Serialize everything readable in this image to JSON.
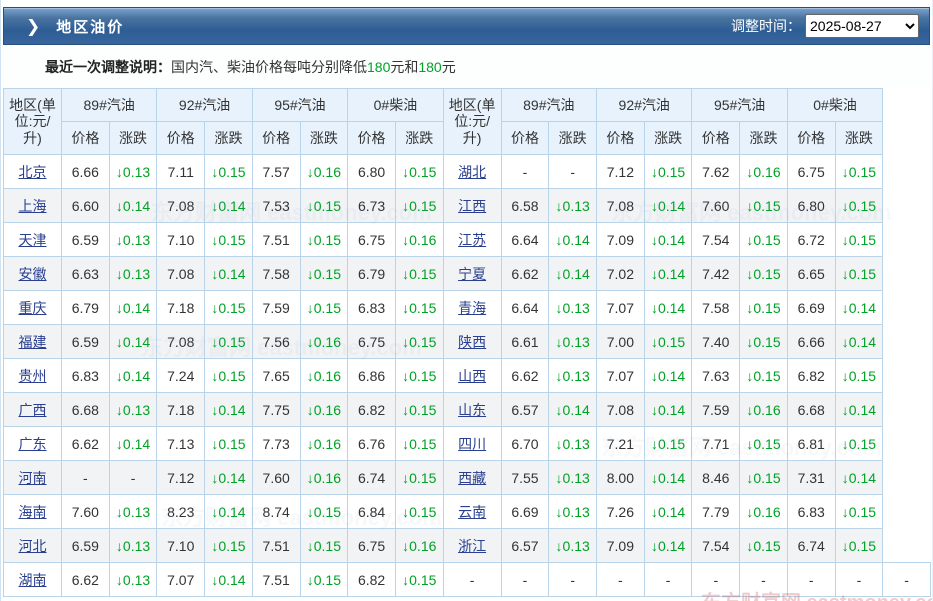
{
  "header": {
    "arrow_icon": "❯",
    "title": "地区油价",
    "adjust_time_label": "调整时间：",
    "adjust_date": "2025-08-27"
  },
  "notice": {
    "label": "最近一次调整说明：",
    "text1": "国内汽、柴油价格每吨分别降低",
    "amount1": "180",
    "text2": "元和",
    "amount2": "180",
    "text3": "元"
  },
  "table": {
    "region_header": "地区(单位:元/升)",
    "fuel_groups": [
      "89#汽油",
      "92#汽油",
      "95#汽油",
      "0#柴油"
    ],
    "price_label": "价格",
    "change_label": "涨跌",
    "rows": [
      [
        "北京",
        "6.66",
        "↓0.13",
        "7.11",
        "↓0.15",
        "7.57",
        "↓0.16",
        "6.80",
        "↓0.15",
        "湖北",
        "-",
        "-",
        "7.12",
        "↓0.15",
        "7.62",
        "↓0.16",
        "6.75",
        "↓0.15"
      ],
      [
        "上海",
        "6.60",
        "↓0.14",
        "7.08",
        "↓0.14",
        "7.53",
        "↓0.15",
        "6.73",
        "↓0.15",
        "江西",
        "6.58",
        "↓0.13",
        "7.08",
        "↓0.14",
        "7.60",
        "↓0.15",
        "6.80",
        "↓0.15"
      ],
      [
        "天津",
        "6.59",
        "↓0.13",
        "7.10",
        "↓0.15",
        "7.51",
        "↓0.15",
        "6.75",
        "↓0.16",
        "江苏",
        "6.64",
        "↓0.14",
        "7.09",
        "↓0.14",
        "7.54",
        "↓0.15",
        "6.72",
        "↓0.15"
      ],
      [
        "安徽",
        "6.63",
        "↓0.13",
        "7.08",
        "↓0.14",
        "7.58",
        "↓0.15",
        "6.79",
        "↓0.15",
        "宁夏",
        "6.62",
        "↓0.14",
        "7.02",
        "↓0.14",
        "7.42",
        "↓0.15",
        "6.65",
        "↓0.15"
      ],
      [
        "重庆",
        "6.79",
        "↓0.14",
        "7.18",
        "↓0.15",
        "7.59",
        "↓0.15",
        "6.83",
        "↓0.15",
        "青海",
        "6.64",
        "↓0.13",
        "7.07",
        "↓0.14",
        "7.58",
        "↓0.15",
        "6.69",
        "↓0.14"
      ],
      [
        "福建",
        "6.59",
        "↓0.14",
        "7.08",
        "↓0.15",
        "7.56",
        "↓0.16",
        "6.75",
        "↓0.15",
        "陕西",
        "6.61",
        "↓0.13",
        "7.00",
        "↓0.15",
        "7.40",
        "↓0.15",
        "6.66",
        "↓0.14"
      ],
      [
        "贵州",
        "6.83",
        "↓0.14",
        "7.24",
        "↓0.15",
        "7.65",
        "↓0.16",
        "6.86",
        "↓0.15",
        "山西",
        "6.62",
        "↓0.13",
        "7.07",
        "↓0.14",
        "7.63",
        "↓0.15",
        "6.82",
        "↓0.15"
      ],
      [
        "广西",
        "6.68",
        "↓0.13",
        "7.18",
        "↓0.14",
        "7.75",
        "↓0.16",
        "6.82",
        "↓0.15",
        "山东",
        "6.57",
        "↓0.14",
        "7.08",
        "↓0.14",
        "7.59",
        "↓0.16",
        "6.68",
        "↓0.14"
      ],
      [
        "广东",
        "6.62",
        "↓0.14",
        "7.13",
        "↓0.15",
        "7.73",
        "↓0.16",
        "6.76",
        "↓0.15",
        "四川",
        "6.70",
        "↓0.13",
        "7.21",
        "↓0.15",
        "7.71",
        "↓0.15",
        "6.81",
        "↓0.15"
      ],
      [
        "河南",
        "-",
        "-",
        "7.12",
        "↓0.14",
        "7.60",
        "↓0.16",
        "6.74",
        "↓0.15",
        "西藏",
        "7.55",
        "↓0.13",
        "8.00",
        "↓0.14",
        "8.46",
        "↓0.15",
        "7.31",
        "↓0.14"
      ],
      [
        "海南",
        "7.60",
        "↓0.13",
        "8.23",
        "↓0.14",
        "8.74",
        "↓0.15",
        "6.84",
        "↓0.15",
        "云南",
        "6.69",
        "↓0.13",
        "7.26",
        "↓0.14",
        "7.79",
        "↓0.16",
        "6.83",
        "↓0.15"
      ],
      [
        "河北",
        "6.59",
        "↓0.13",
        "7.10",
        "↓0.15",
        "7.51",
        "↓0.15",
        "6.75",
        "↓0.16",
        "浙江",
        "6.57",
        "↓0.13",
        "7.09",
        "↓0.14",
        "7.54",
        "↓0.15",
        "6.74",
        "↓0.15"
      ],
      [
        "湖南",
        "6.62",
        "↓0.13",
        "7.07",
        "↓0.14",
        "7.51",
        "↓0.15",
        "6.82",
        "↓0.15",
        "-",
        "-",
        "-",
        "-",
        "-",
        "-",
        "-",
        "-",
        "-",
        "-"
      ]
    ]
  },
  "watermark": {
    "text": "东方财富网 eastmoney.com"
  },
  "colors": {
    "bar_blue_top": "#7ba3d0",
    "bar_blue_bottom": "#2e5d96",
    "table_border": "#b9d3e8",
    "header_cell_bg": "#e7f2fc",
    "alt_row_bg": "#f1f3f5",
    "change_green": "#00a226",
    "region_link": "#2a3f8f"
  }
}
